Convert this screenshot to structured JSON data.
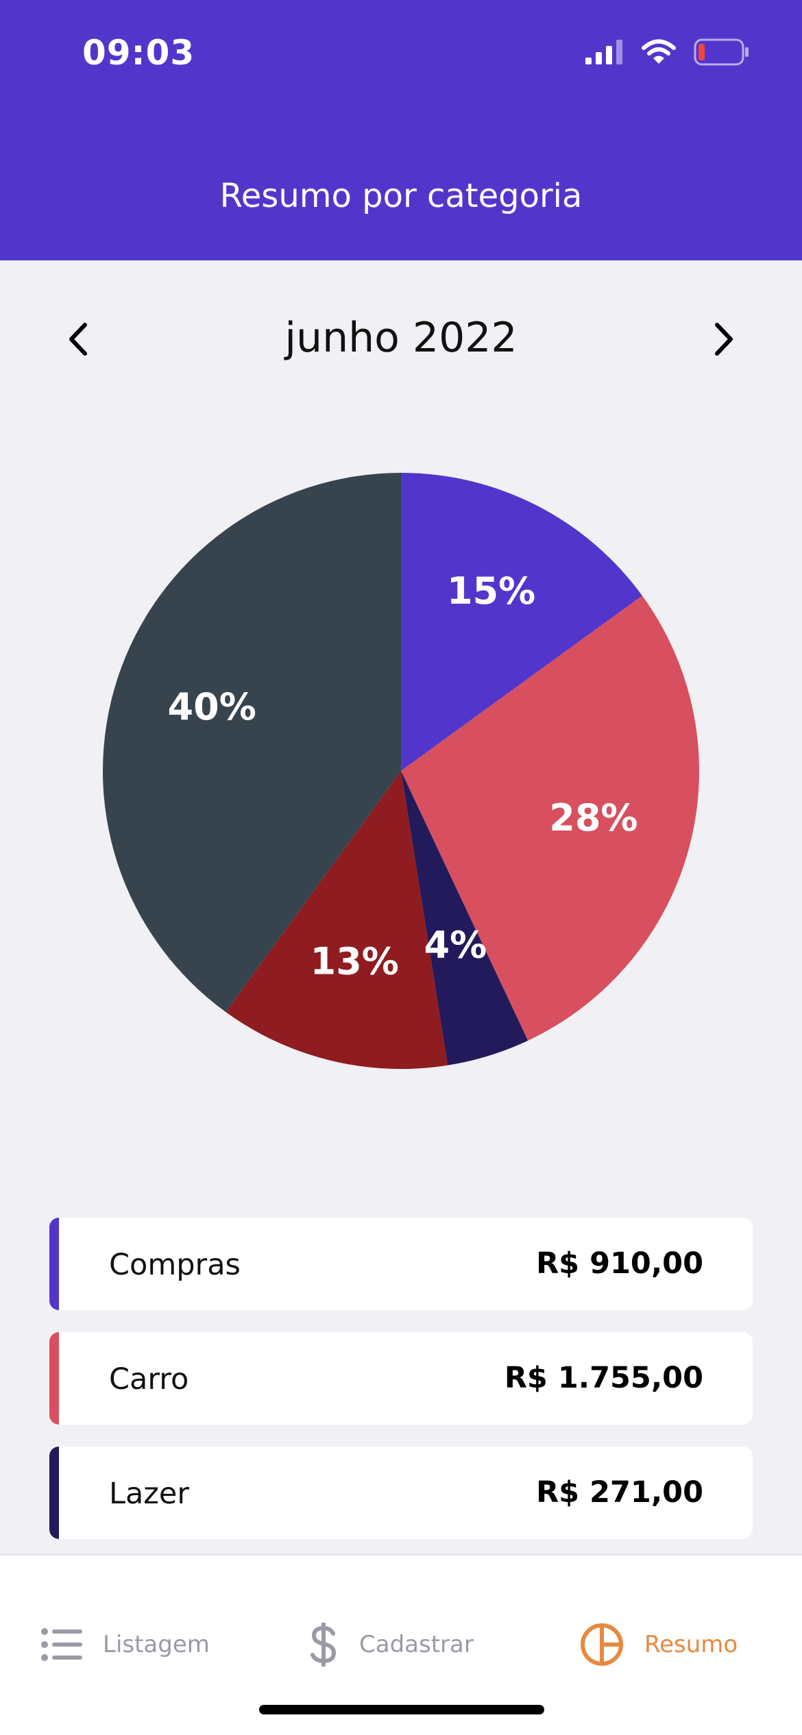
{
  "status_bar": {
    "time": "09:03"
  },
  "header": {
    "title": "Resumo por categoria"
  },
  "month_nav": {
    "label": "junho 2022"
  },
  "chart_data": {
    "type": "pie",
    "slices": [
      {
        "label": "15%",
        "value": 15,
        "color": "#5236CC"
      },
      {
        "label": "28%",
        "value": 28,
        "color": "#D84F5F"
      },
      {
        "label": "4%",
        "value": 4.5,
        "color": "#231A5C"
      },
      {
        "label": "13%",
        "value": 12.5,
        "color": "#8F1C20"
      },
      {
        "label": "40%",
        "value": 40,
        "color": "#37444E"
      }
    ]
  },
  "categories": [
    {
      "name": "Compras",
      "amount": "R$ 910,00",
      "color": "#5236CC"
    },
    {
      "name": "Carro",
      "amount": "R$ 1.755,00",
      "color": "#D84F5F"
    },
    {
      "name": "Lazer",
      "amount": "R$ 271,00",
      "color": "#231A5C"
    }
  ],
  "tabs": {
    "listagem": {
      "label": "Listagem",
      "icon": "list-icon"
    },
    "cadastrar": {
      "label": "Cadastrar",
      "icon": "dollar-icon"
    },
    "resumo": {
      "label": "Resumo",
      "icon": "pie-chart-icon",
      "active_color": "#E8893F"
    }
  }
}
